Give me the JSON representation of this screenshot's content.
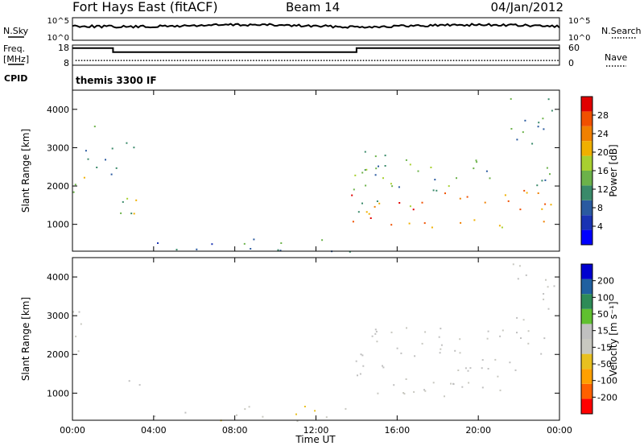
{
  "header": {
    "station": "Fort Hays East (fitACF)",
    "beam": "Beam 14",
    "date": "04/Jan/2012"
  },
  "top_panels": {
    "nsky": {
      "label": "N.Sky",
      "right_label": "N.Search",
      "y_ticks_left": [
        "10^5",
        "10^0"
      ],
      "y_ticks_right": [
        "10^5",
        "10^0"
      ]
    },
    "freq": {
      "label_line1": "Freq.",
      "label_line2": "[MHz]",
      "right_label": "Nave",
      "y_ticks_left": [
        "18",
        "8"
      ],
      "y_ticks_right": [
        "60",
        "0"
      ],
      "freq_ylim": [
        8,
        18
      ],
      "nave_ylim": [
        0,
        60
      ],
      "freq_steps": [
        {
          "t0": 0,
          "t1": 2.0,
          "value": 16.5
        },
        {
          "t0": 2.0,
          "t1": 14.0,
          "value": 14.5
        },
        {
          "t0": 14.0,
          "t1": 24,
          "value": 16.5
        }
      ],
      "nave_value": 14
    },
    "cpid": {
      "label": "CPID",
      "text": "themis 3300 IF"
    }
  },
  "colors": {
    "power_scale": [
      "#0000ff",
      "#1a33b3",
      "#2a5aa0",
      "#3a8a6a",
      "#6cb24a",
      "#a8d030",
      "#f0b000",
      "#f08000",
      "#f05000",
      "#e00000"
    ],
    "velocity_scale": [
      "#ff0000",
      "#ff6000",
      "#ffa000",
      "#e8c020",
      "#c8c8c0",
      "#c0c0c0",
      "#60c030",
      "#2e8b57",
      "#2060a0",
      "#0000d0"
    ]
  },
  "chart_data": [
    {
      "type": "heatmap",
      "name": "Power",
      "ylabel": "Slant Range [km]",
      "colorbar_label": "Power [dB]",
      "colorbar_ticks": [
        "28",
        "24",
        "20",
        "16",
        "12",
        "8",
        "4"
      ],
      "colorbar_range": [
        0,
        32
      ],
      "xlim": [
        0,
        24
      ],
      "ylim": [
        300,
        4500
      ],
      "y_ticks": [
        "1000",
        "2000",
        "3000",
        "4000"
      ],
      "x_ticks": [
        "00:00",
        "04:00",
        "08:00",
        "12:00",
        "16:00",
        "20:00",
        "00:00"
      ],
      "regions": [
        {
          "t0": 0.0,
          "t1": 0.8,
          "r0": 1800,
          "r1": 2800,
          "power": [
            14,
            24
          ]
        },
        {
          "t0": 0.5,
          "t1": 1.6,
          "r0": 2300,
          "r1": 3600,
          "power": [
            8,
            18
          ]
        },
        {
          "t0": 1.8,
          "t1": 3.3,
          "r0": 2200,
          "r1": 3300,
          "power": [
            6,
            14
          ]
        },
        {
          "t0": 0.8,
          "t1": 3.2,
          "r0": 900,
          "r1": 1700,
          "power": [
            8,
            22
          ]
        },
        {
          "t0": 4.0,
          "t1": 6.0,
          "r0": 350,
          "r1": 650,
          "power": [
            4,
            12
          ]
        },
        {
          "t0": 6.0,
          "t1": 14.0,
          "r0": 300,
          "r1": 700,
          "power": [
            4,
            14
          ]
        },
        {
          "t0": 13.6,
          "t1": 23.6,
          "r0": 900,
          "r1": 1900,
          "power": [
            18,
            30
          ]
        },
        {
          "t0": 13.8,
          "t1": 23.8,
          "r0": 1900,
          "r1": 2800,
          "power": [
            8,
            18
          ]
        },
        {
          "t0": 14.0,
          "t1": 15.5,
          "r0": 1300,
          "r1": 3000,
          "power": [
            8,
            16
          ]
        },
        {
          "t0": 21.5,
          "t1": 23.8,
          "r0": 2900,
          "r1": 4400,
          "power": [
            8,
            16
          ]
        }
      ]
    },
    {
      "type": "heatmap",
      "name": "Velocity",
      "ylabel": "Slant Range [km]",
      "xlabel": "Time UT",
      "colorbar_label": "Velocity [m s⁻¹]",
      "colorbar_ticks": [
        "200",
        "100",
        "50",
        "15",
        "-15",
        "-50",
        "-100",
        "-200"
      ],
      "colorbar_range": [
        -250,
        250
      ],
      "xlim": [
        0,
        24
      ],
      "ylim": [
        300,
        4500
      ],
      "y_ticks": [
        "1000",
        "2000",
        "3000",
        "4000"
      ],
      "x_ticks": [
        "00:00",
        "04:00",
        "08:00",
        "12:00",
        "16:00",
        "20:00",
        "00:00"
      ],
      "regions": [
        {
          "t0": 0.0,
          "t1": 0.8,
          "r0": 1800,
          "r1": 3600,
          "velocity": [
            -10,
            10
          ]
        },
        {
          "t0": 1.5,
          "t1": 3.4,
          "r0": 1200,
          "r1": 1500,
          "velocity": [
            20,
            40
          ]
        },
        {
          "t0": 0.8,
          "t1": 1.5,
          "r0": 1000,
          "r1": 1200,
          "velocity": [
            -10,
            10
          ]
        },
        {
          "t0": 4.0,
          "t1": 6.0,
          "r0": 350,
          "r1": 650,
          "velocity": [
            20,
            40
          ]
        },
        {
          "t0": 6.0,
          "t1": 14.0,
          "r0": 300,
          "r1": 700,
          "velocity": [
            -80,
            -20
          ]
        },
        {
          "t0": 13.8,
          "t1": 15.0,
          "r0": 1300,
          "r1": 3000,
          "velocity": [
            20,
            40
          ]
        },
        {
          "t0": 14.5,
          "t1": 23.8,
          "r0": 900,
          "r1": 2800,
          "velocity": [
            -10,
            10
          ]
        },
        {
          "t0": 21.5,
          "t1": 23.8,
          "r0": 2900,
          "r1": 4400,
          "velocity": [
            -10,
            10
          ]
        }
      ]
    }
  ]
}
